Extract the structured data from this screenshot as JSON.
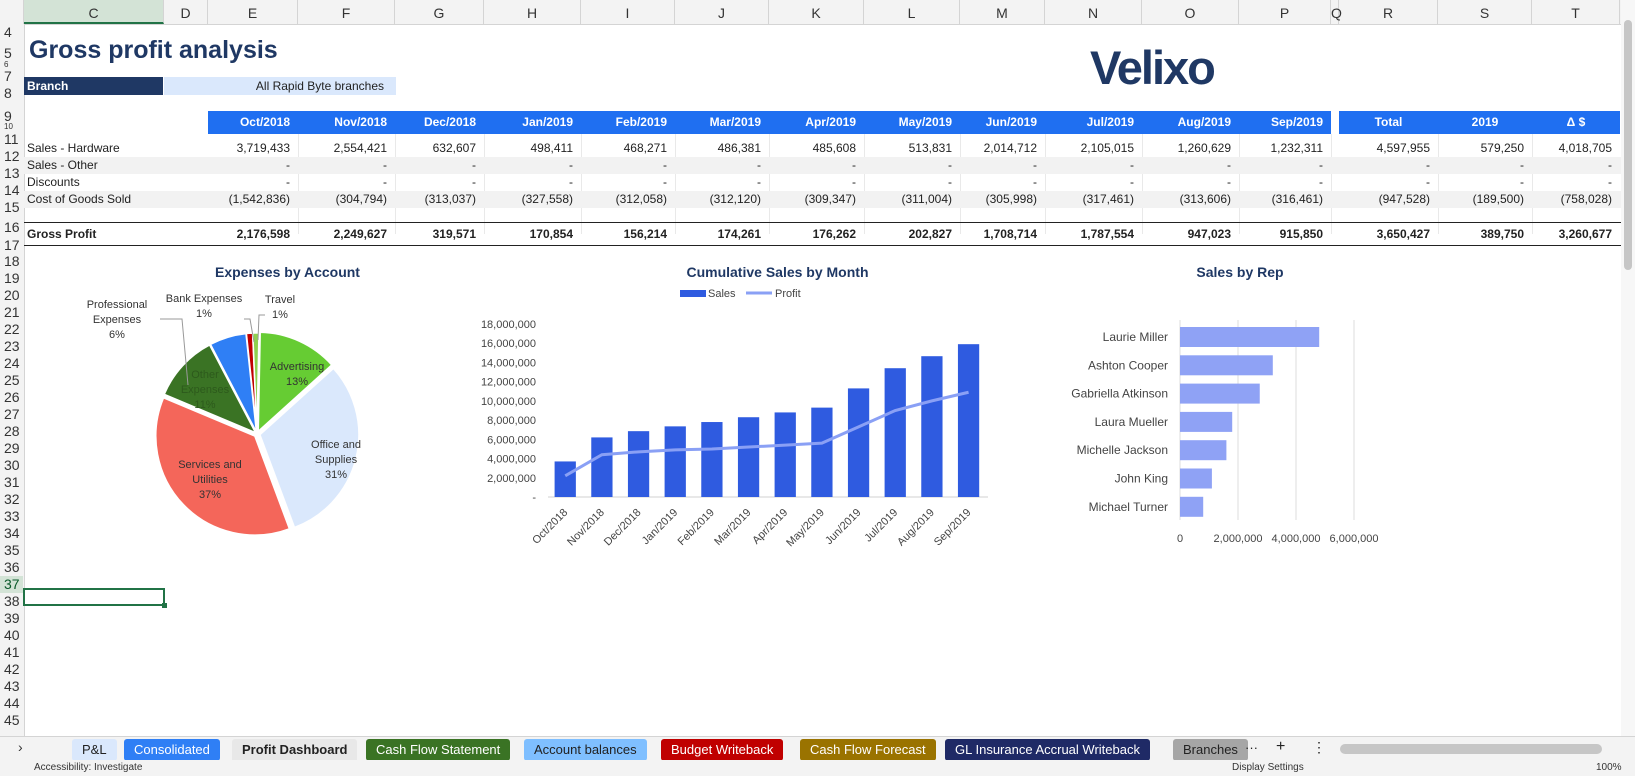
{
  "columns": [
    "C",
    "D",
    "E",
    "F",
    "G",
    "H",
    "I",
    "J",
    "K",
    "L",
    "M",
    "N",
    "O",
    "P",
    "Q",
    "R",
    "S",
    "T"
  ],
  "rows": [
    "4",
    "5",
    "6",
    "7",
    "8",
    "9",
    "10",
    "11",
    "12",
    "13",
    "14",
    "15",
    "16",
    "17",
    "18",
    "19",
    "20",
    "21",
    "22",
    "23",
    "24",
    "25",
    "26",
    "27",
    "28",
    "29",
    "30",
    "31",
    "32",
    "33",
    "34",
    "35",
    "36",
    "37",
    "38",
    "39",
    "40",
    "41",
    "42",
    "43",
    "44",
    "45"
  ],
  "title": "Gross profit analysis",
  "branch": {
    "label": "Branch",
    "value": "All Rapid Byte branches"
  },
  "logo": "Velixo",
  "table": {
    "months": [
      "Oct/2018",
      "Nov/2018",
      "Dec/2018",
      "Jan/2019",
      "Feb/2019",
      "Mar/2019",
      "Apr/2019",
      "May/2019",
      "Jun/2019",
      "Jul/2019",
      "Aug/2019",
      "Sep/2019"
    ],
    "summary_headers": [
      "Total",
      "2019",
      "Δ $"
    ],
    "rows": [
      {
        "label": "Sales - Hardware",
        "values": [
          "3,719,433",
          "2,554,421",
          "632,607",
          "498,411",
          "468,271",
          "486,381",
          "485,608",
          "513,831",
          "2,014,712",
          "2,105,015",
          "1,260,629",
          "1,232,311"
        ],
        "summary": [
          "4,597,955",
          "579,250",
          "4,018,705"
        ]
      },
      {
        "label": "Sales - Other",
        "values": [
          "-",
          "-",
          "-",
          "-",
          "-",
          "-",
          "-",
          "-",
          "-",
          "-",
          "-",
          "-"
        ],
        "summary": [
          "-",
          "-",
          "-"
        ]
      },
      {
        "label": "Discounts",
        "values": [
          "-",
          "-",
          "-",
          "-",
          "-",
          "-",
          "-",
          "-",
          "-",
          "-",
          "-",
          "-"
        ],
        "summary": [
          "-",
          "-",
          "-"
        ]
      },
      {
        "label": "Cost of Goods Sold",
        "values": [
          "(1,542,836)",
          "(304,794)",
          "(313,037)",
          "(327,558)",
          "(312,058)",
          "(312,120)",
          "(309,347)",
          "(311,004)",
          "(305,998)",
          "(317,461)",
          "(313,606)",
          "(316,461)"
        ],
        "summary": [
          "(947,528)",
          "(189,500)",
          "(758,028)"
        ]
      }
    ],
    "gross_profit": {
      "label": "Gross Profit",
      "values": [
        "2,176,598",
        "2,249,627",
        "319,571",
        "170,854",
        "156,214",
        "174,261",
        "176,262",
        "202,827",
        "1,708,714",
        "1,787,554",
        "947,023",
        "915,850"
      ],
      "summary": [
        "3,650,427",
        "389,750",
        "3,260,677"
      ]
    }
  },
  "chart_data": [
    {
      "type": "pie",
      "title": "Expenses by Account",
      "categories": [
        "Advertising",
        "Office and Supplies",
        "Services and Utilities",
        "Other Expenses",
        "Professional Expenses",
        "Bank Expenses",
        "Travel"
      ],
      "values": [
        13,
        31,
        37,
        11,
        6,
        1,
        1
      ],
      "labels": [
        "13%",
        "31%",
        "37%",
        "11%",
        "6%",
        "1%",
        "1%"
      ],
      "colors": [
        "#66cc33",
        "#dae8fc",
        "#f4665a",
        "#3a7324",
        "#2f7ff5",
        "#c00000",
        "#8fd14f"
      ]
    },
    {
      "type": "bar",
      "title": "Cumulative Sales by Month",
      "categories": [
        "Oct/2018",
        "Nov/2018",
        "Dec/2018",
        "Jan/2019",
        "Feb/2019",
        "Mar/2019",
        "Apr/2019",
        "May/2019",
        "Jun/2019",
        "Jul/2019",
        "Aug/2019",
        "Sep/2019"
      ],
      "series": [
        {
          "name": "Sales",
          "kind": "bar",
          "color": "#2f5be0",
          "values": [
            3700000,
            6200000,
            6850000,
            7350000,
            7800000,
            8300000,
            8800000,
            9300000,
            11300000,
            13400000,
            14650000,
            15900000
          ]
        },
        {
          "name": "Profit",
          "kind": "line",
          "color": "#8aa0f5",
          "values": [
            2200000,
            4400000,
            4700000,
            4900000,
            5000000,
            5200000,
            5400000,
            5600000,
            7300000,
            9000000,
            10000000,
            10900000
          ]
        }
      ],
      "yticks": [
        "-",
        "2,000,000",
        "4,000,000",
        "6,000,000",
        "8,000,000",
        "10,000,000",
        "12,000,000",
        "14,000,000",
        "16,000,000",
        "18,000,000"
      ],
      "ylim": [
        0,
        18000000
      ]
    },
    {
      "type": "bar",
      "orientation": "horizontal",
      "title": "Sales by Rep",
      "categories": [
        "Laurie Miller",
        "Ashton Cooper",
        "Gabriella Atkinson",
        "Laura Mueller",
        "Michelle Jackson",
        "John King",
        "Michael Turner"
      ],
      "values": [
        4800000,
        3200000,
        2750000,
        1800000,
        1600000,
        1100000,
        800000
      ],
      "color": "#8fa2f5",
      "xticks": [
        "0",
        "2,000,000",
        "4,000,000",
        "6,000,000"
      ],
      "xlim": [
        0,
        6000000
      ]
    }
  ],
  "sheet_tabs": [
    {
      "label": "P&L",
      "color": "#dae8fc",
      "text": "#222"
    },
    {
      "label": "Consolidated",
      "color": "#2f7ff5",
      "text": "#fff"
    },
    {
      "label": "Profit Dashboard",
      "color": "#e8e8e8",
      "text": "#222",
      "active": true
    },
    {
      "label": "Cash Flow Statement",
      "color": "#3a7324",
      "text": "#fff"
    },
    {
      "label": "Account balances",
      "color": "#7fbfff",
      "text": "#222"
    },
    {
      "label": "Budget Writeback",
      "color": "#c00000",
      "text": "#fff"
    },
    {
      "label": "Cash Flow Forecast",
      "color": "#9a7300",
      "text": "#fff"
    },
    {
      "label": "GL Insurance Accrual Writeback",
      "color": "#1f2a66",
      "text": "#fff"
    },
    {
      "label": "Branches",
      "color": "#a6a6a6",
      "text": "#222"
    }
  ],
  "tab_controls": {
    "more": "···",
    "add": "+",
    "options": "⋮",
    "nav_prev": "›"
  },
  "status": {
    "accessibility": "Accessibility: Investigate",
    "display": "Display Settings",
    "zoom": "100%"
  }
}
